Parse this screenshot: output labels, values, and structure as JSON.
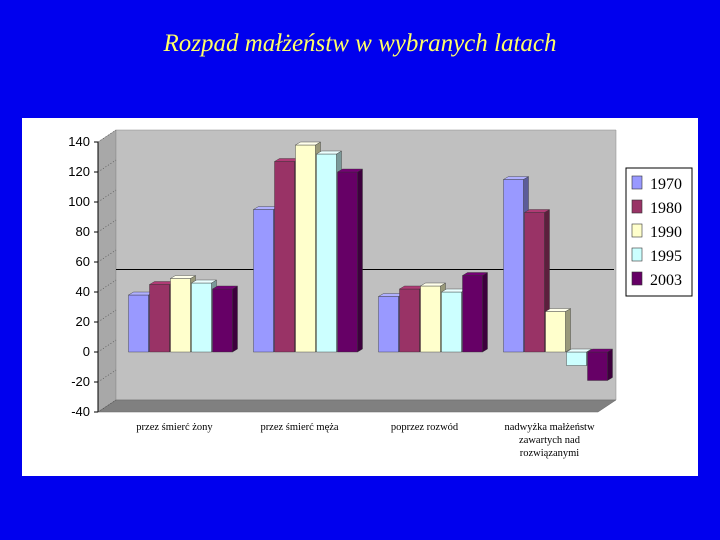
{
  "slide": {
    "title": "Rozpad małżeństw w wybranych latach",
    "background": "#0000ee",
    "title_color": "#ffff66"
  },
  "chart_data": {
    "type": "bar",
    "style": "3d",
    "categories": [
      [
        "przez śmierć żony"
      ],
      [
        "przez śmierć męża"
      ],
      [
        "poprzez rozwód"
      ],
      [
        "nadwyżka małżeństw",
        "zawartych nad",
        "rozwiązanymi"
      ]
    ],
    "series": [
      {
        "name": "1970",
        "color": "#9999ff",
        "values": [
          38,
          95,
          37,
          115
        ]
      },
      {
        "name": "1980",
        "color": "#993366",
        "values": [
          45,
          127,
          42,
          93
        ]
      },
      {
        "name": "1990",
        "color": "#ffffcc",
        "values": [
          49,
          138,
          44,
          27
        ]
      },
      {
        "name": "1995",
        "color": "#ccffff",
        "values": [
          46,
          132,
          40,
          -9
        ]
      },
      {
        "name": "2003",
        "color": "#660066",
        "values": [
          42,
          120,
          51,
          -19
        ]
      }
    ],
    "ylim": [
      -40,
      140
    ],
    "yticks": [
      140,
      120,
      100,
      80,
      60,
      40,
      20,
      0,
      -20,
      -40
    ],
    "grid": false,
    "legend_position": "right",
    "wall_color": "#c0c0c0",
    "reference_line_value": 47
  }
}
